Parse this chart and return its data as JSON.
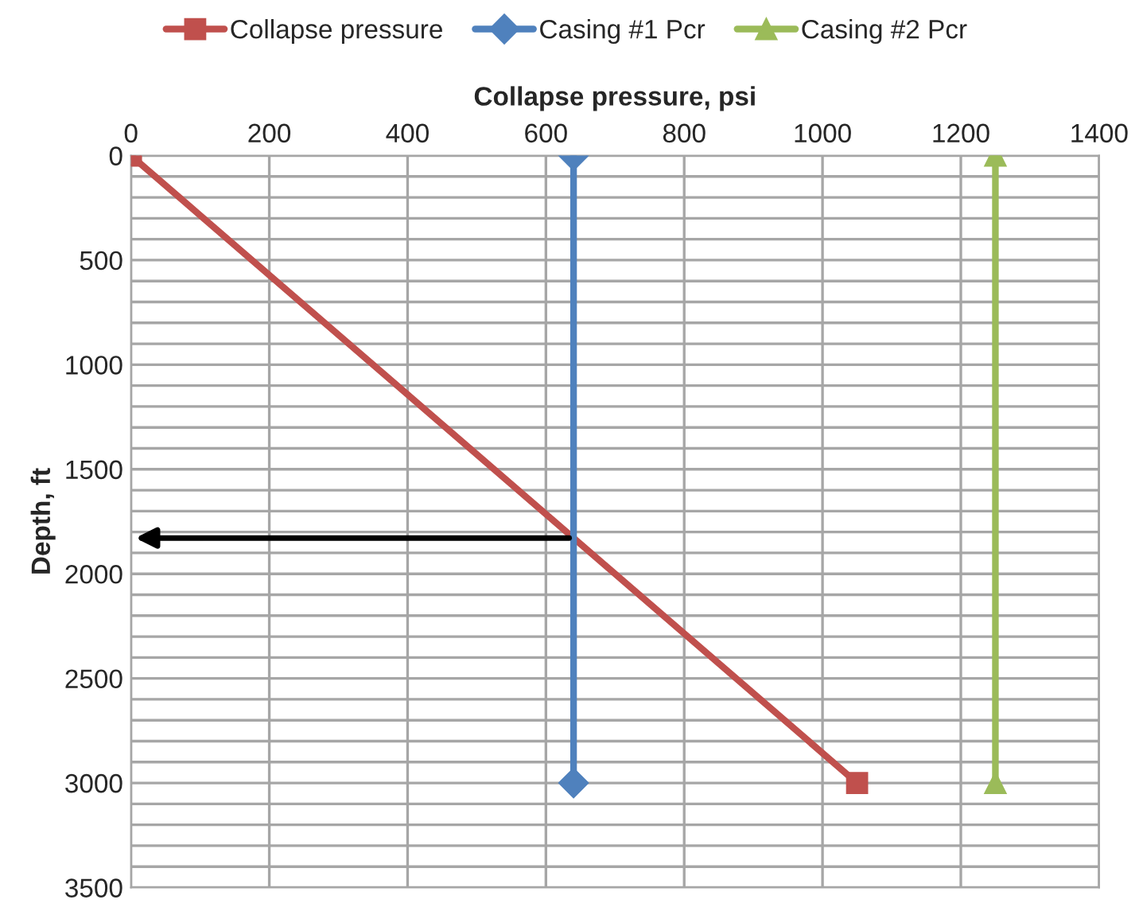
{
  "chart_data": {
    "type": "line",
    "xlabel": "Collapse pressure, psi",
    "ylabel": "Depth, ft",
    "series": [
      {
        "name": "Collapse pressure",
        "color": "#c0504d",
        "marker": "square",
        "x": [
          0,
          1050
        ],
        "values": [
          0,
          3000
        ]
      },
      {
        "name": "Casing #1 Pcr",
        "color": "#4f81bd",
        "marker": "diamond",
        "x": [
          640,
          640
        ],
        "values": [
          0,
          3000
        ]
      },
      {
        "name": "Casing #2 Pcr",
        "color": "#9bbb59",
        "marker": "triangle",
        "x": [
          1250,
          1250
        ],
        "values": [
          0,
          3000
        ]
      }
    ],
    "xlim": [
      0,
      1400
    ],
    "xticks": [
      0,
      200,
      400,
      600,
      800,
      1000,
      1200,
      1400
    ],
    "ylim": [
      3500,
      0
    ],
    "yticks": [
      0,
      {
        "value": 100,
        "label": null
      },
      {
        "value": 200,
        "label": null
      },
      {
        "value": 300,
        "label": null
      },
      {
        "value": 400,
        "label": null
      },
      500,
      {
        "value": 600,
        "label": null
      },
      {
        "value": 700,
        "label": null
      },
      {
        "value": 800,
        "label": null
      },
      {
        "value": 900,
        "label": null
      },
      1000,
      {
        "value": 1100,
        "label": null
      },
      {
        "value": 1200,
        "label": null
      },
      {
        "value": 1300,
        "label": null
      },
      {
        "value": 1400,
        "label": null
      },
      1500,
      {
        "value": 1600,
        "label": null
      },
      {
        "value": 1700,
        "label": null
      },
      {
        "value": 1800,
        "label": null
      },
      {
        "value": 1900,
        "label": null
      },
      2000,
      {
        "value": 2100,
        "label": null
      },
      {
        "value": 2200,
        "label": null
      },
      {
        "value": 2300,
        "label": null
      },
      {
        "value": 2400,
        "label": null
      },
      2500,
      {
        "value": 2600,
        "label": null
      },
      {
        "value": 2700,
        "label": null
      },
      {
        "value": 2800,
        "label": null
      },
      {
        "value": 2900,
        "label": null
      },
      3000,
      {
        "value": 3100,
        "label": null
      },
      {
        "value": 3200,
        "label": null
      },
      {
        "value": 3300,
        "label": null
      },
      {
        "value": 3400,
        "label": null
      },
      3500
    ],
    "grid": true,
    "legend": "top",
    "line_style": "solid"
  }
}
